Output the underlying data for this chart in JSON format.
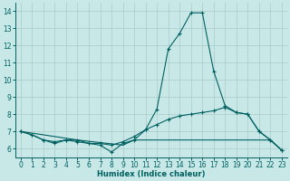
{
  "xlabel": "Humidex (Indice chaleur)",
  "xlim": [
    -0.5,
    23.5
  ],
  "ylim": [
    5.5,
    14.5
  ],
  "yticks": [
    6,
    7,
    8,
    9,
    10,
    11,
    12,
    13,
    14
  ],
  "xticks": [
    0,
    1,
    2,
    3,
    4,
    5,
    6,
    7,
    8,
    9,
    10,
    11,
    12,
    13,
    14,
    15,
    16,
    17,
    18,
    19,
    20,
    21,
    22,
    23
  ],
  "bg_color": "#c8e8e8",
  "grid_color": "#aacaca",
  "line_color": "#006060",
  "line1_x": [
    0,
    1,
    2,
    3,
    4,
    5,
    6,
    7,
    8,
    9,
    10,
    11,
    12,
    13,
    14,
    15,
    16,
    17,
    18,
    19,
    20,
    21,
    22,
    23
  ],
  "line1_y": [
    7.0,
    6.8,
    6.5,
    6.3,
    6.5,
    6.5,
    6.3,
    6.2,
    5.8,
    6.3,
    6.5,
    7.1,
    8.3,
    11.8,
    12.7,
    13.9,
    13.9,
    10.5,
    8.5,
    8.1,
    8.0,
    7.0,
    6.5,
    5.9
  ],
  "line2_x": [
    0,
    1,
    2,
    3,
    4,
    5,
    6,
    7,
    8,
    9,
    10,
    11,
    12,
    13,
    14,
    15,
    16,
    17,
    18,
    19,
    20,
    21,
    22,
    23
  ],
  "line2_y": [
    7.0,
    6.8,
    6.5,
    6.4,
    6.5,
    6.4,
    6.3,
    6.3,
    6.2,
    6.4,
    6.7,
    7.1,
    7.4,
    7.7,
    7.9,
    8.0,
    8.1,
    8.2,
    8.4,
    8.1,
    8.0,
    7.0,
    6.5,
    5.9
  ],
  "line3_x": [
    0,
    5,
    9,
    10,
    11,
    12,
    13,
    14,
    15,
    16,
    17,
    18,
    19,
    20,
    21,
    22,
    23
  ],
  "line3_y": [
    7.0,
    6.5,
    6.2,
    6.5,
    6.5,
    6.5,
    6.5,
    6.5,
    6.5,
    6.5,
    6.5,
    6.5,
    6.5,
    6.5,
    6.5,
    6.5,
    5.9
  ]
}
